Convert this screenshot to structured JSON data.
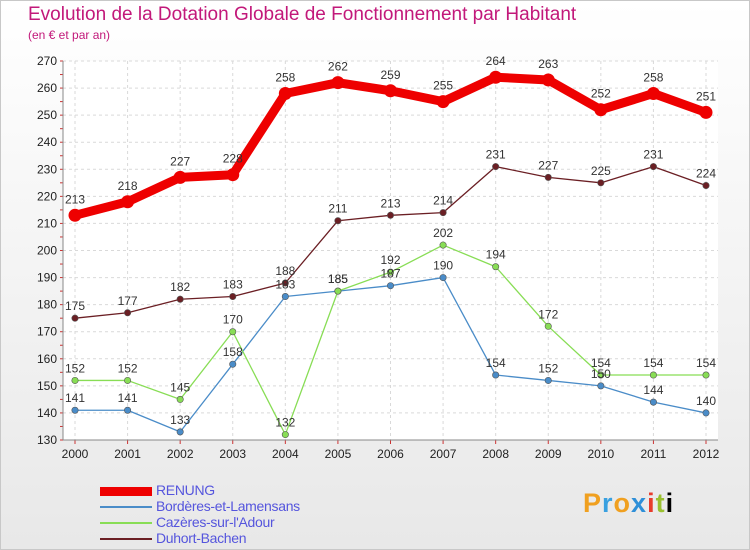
{
  "title": "Evolution de la Dotation Globale de Fonctionnement par Habitant",
  "subtitle": "(en € et par an)",
  "logo_letters": [
    "P",
    "r",
    "o",
    "x",
    "i",
    "t",
    "i"
  ],
  "chart_data": {
    "type": "line",
    "title": "Evolution de la Dotation Globale de Fonctionnement par Habitant",
    "subtitle": "(en € et par an)",
    "xlabel": "",
    "ylabel": "",
    "x": [
      "2000",
      "2001",
      "2002",
      "2003",
      "2004",
      "2005",
      "2006",
      "2007",
      "2008",
      "2009",
      "2010",
      "2011",
      "2012"
    ],
    "ylim": [
      130,
      270
    ],
    "yticks": [
      130,
      140,
      150,
      160,
      170,
      180,
      190,
      200,
      210,
      220,
      230,
      240,
      250,
      260,
      270
    ],
    "grid": true,
    "legend_position": "bottom-left",
    "series": [
      {
        "name": "RENUNG",
        "color": "#ee0000",
        "values": [
          213,
          218,
          227,
          228,
          258,
          262,
          259,
          255,
          264,
          263,
          252,
          258,
          251
        ]
      },
      {
        "name": "Bordères-et-Lamensans",
        "color": "#4a8cc8",
        "values": [
          141,
          141,
          133,
          158,
          183,
          185,
          187,
          190,
          154,
          152,
          150,
          144,
          140
        ]
      },
      {
        "name": "Cazères-sur-l'Adour",
        "color": "#88dd55",
        "values": [
          152,
          152,
          145,
          170,
          132,
          185,
          192,
          202,
          194,
          172,
          154,
          154,
          154
        ]
      },
      {
        "name": "Duhort-Bachen",
        "color": "#6b1f24",
        "values": [
          175,
          177,
          182,
          183,
          188,
          211,
          213,
          214,
          231,
          227,
          225,
          231,
          224
        ]
      }
    ]
  }
}
